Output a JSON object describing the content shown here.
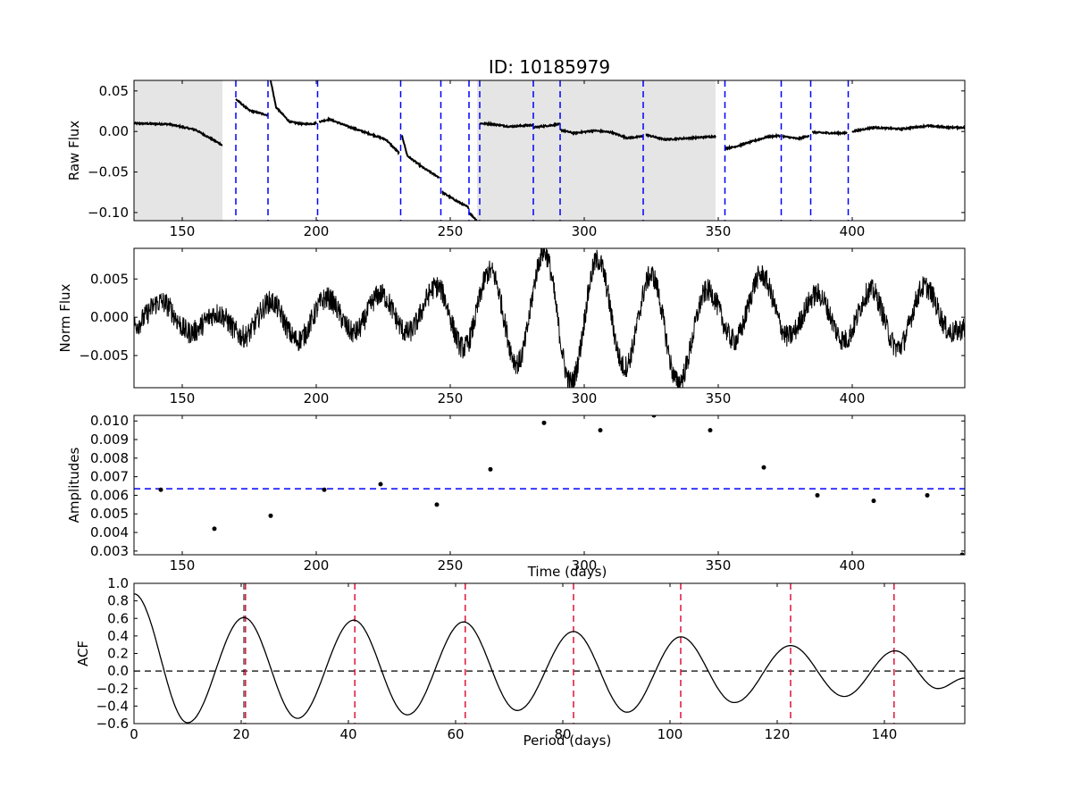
{
  "chart_data": [
    {
      "type": "line",
      "title": "ID: 10185979",
      "xlabel": "",
      "ylabel": "Raw Flux",
      "xlim": [
        132,
        442
      ],
      "ylim": [
        -0.11,
        0.063
      ],
      "xticks": [
        150,
        200,
        250,
        300,
        350,
        400
      ],
      "xtick_labels": [
        "150",
        "200",
        "250",
        "300",
        "350",
        "400"
      ],
      "yticks": [
        0.05,
        0.0,
        -0.05,
        -0.1
      ],
      "ytick_labels": [
        "0.05",
        "0.00",
        "−0.05",
        "−0.10"
      ],
      "shaded_spans": [
        [
          132,
          165
        ],
        [
          260,
          349
        ]
      ],
      "quarter_boundaries": [
        170,
        182,
        200.5,
        231.5,
        246.5,
        257,
        261,
        281,
        291,
        322,
        352.5,
        373.5,
        384.5,
        398.5
      ],
      "boundary_color": "#0000ff",
      "shade_color": "#e5e5e5",
      "segments": [
        {
          "x": [
            132,
            145,
            155,
            165
          ],
          "y": [
            0.01,
            0.009,
            0.002,
            -0.017
          ]
        },
        {
          "x": [
            170,
            175,
            182
          ],
          "y": [
            0.04,
            0.026,
            0.02
          ]
        },
        {
          "x": [
            183,
            185,
            190,
            195,
            200
          ],
          "y": [
            0.063,
            0.03,
            0.012,
            0.009,
            0.01
          ]
        },
        {
          "x": [
            201,
            205,
            212,
            220,
            226,
            231
          ],
          "y": [
            0.012,
            0.015,
            0.006,
            -0.003,
            -0.01,
            -0.027
          ]
        },
        {
          "x": [
            232,
            234,
            240,
            246
          ],
          "y": [
            -0.005,
            -0.03,
            -0.045,
            -0.057
          ]
        },
        {
          "x": [
            247,
            252,
            257
          ],
          "y": [
            -0.075,
            -0.085,
            -0.094
          ]
        },
        {
          "x": [
            257,
            260
          ],
          "y": [
            -0.1,
            -0.11
          ]
        },
        {
          "x": [
            261,
            266,
            272,
            281
          ],
          "y": [
            0.01,
            0.009,
            0.006,
            0.008
          ]
        },
        {
          "x": [
            281,
            286,
            291
          ],
          "y": [
            0.005,
            0.007,
            0.009
          ]
        },
        {
          "x": [
            291,
            296,
            304,
            310,
            316,
            322
          ],
          "y": [
            0.002,
            -0.002,
            0.001,
            -0.001,
            -0.008,
            -0.006
          ]
        },
        {
          "x": [
            323,
            330,
            340,
            349
          ],
          "y": [
            -0.004,
            -0.01,
            -0.008,
            -0.006
          ]
        },
        {
          "x": [
            352.5,
            356,
            362,
            368,
            373
          ],
          "y": [
            -0.021,
            -0.019,
            -0.013,
            -0.007,
            -0.005
          ]
        },
        {
          "x": [
            374,
            380,
            384
          ],
          "y": [
            -0.006,
            -0.009,
            -0.005
          ]
        },
        {
          "x": [
            385,
            392,
            398
          ],
          "y": [
            -0.001,
            -0.002,
            -0.002
          ]
        },
        {
          "x": [
            400,
            408,
            418,
            428,
            436,
            442
          ],
          "y": [
            0.0,
            0.005,
            0.003,
            0.007,
            0.005,
            0.005
          ]
        }
      ]
    },
    {
      "type": "line",
      "title": "",
      "xlabel": "",
      "ylabel": "Norm Flux",
      "xlim": [
        132,
        442
      ],
      "ylim": [
        -0.0092,
        0.009
      ],
      "xticks": [
        150,
        200,
        250,
        300,
        350,
        400
      ],
      "xtick_labels": [
        "150",
        "200",
        "250",
        "300",
        "350",
        "400"
      ],
      "yticks": [
        0.005,
        0.0,
        -0.005
      ],
      "ytick_labels": [
        "0.005",
        "0.000",
        "−0.005"
      ],
      "envelope_extrema": {
        "x": [
          132,
          142,
          153,
          163,
          173,
          183,
          193,
          204,
          214,
          224,
          234,
          245,
          255,
          265,
          275,
          285,
          295,
          305,
          315,
          325,
          335,
          346,
          356,
          366,
          376,
          387,
          397,
          407,
          417,
          427,
          437,
          442
        ],
        "y": [
          -0.001,
          0.002,
          -0.002,
          0.0005,
          -0.0025,
          0.002,
          -0.003,
          0.0025,
          -0.002,
          0.003,
          -0.002,
          0.004,
          -0.004,
          0.006,
          -0.006,
          0.0085,
          -0.0085,
          0.0075,
          -0.0065,
          0.0055,
          -0.0085,
          0.0035,
          -0.003,
          0.0055,
          -0.0025,
          0.003,
          -0.003,
          0.0035,
          -0.004,
          0.004,
          -0.002,
          -0.0015
        ]
      },
      "noise_amplitude": 0.0015
    },
    {
      "type": "scatter",
      "title": "",
      "xlabel": "Time (days)",
      "ylabel": "Amplitudes",
      "xlim": [
        132,
        442
      ],
      "ylim": [
        0.0028,
        0.0103
      ],
      "xticks": [
        150,
        200,
        250,
        300,
        350,
        400
      ],
      "xtick_labels": [
        "150",
        "200",
        "250",
        "300",
        "350",
        "400"
      ],
      "yticks": [
        0.003,
        0.004,
        0.005,
        0.006,
        0.007,
        0.008,
        0.009,
        0.01
      ],
      "ytick_labels": [
        "0.003",
        "0.004",
        "0.005",
        "0.006",
        "0.007",
        "0.008",
        "0.009",
        "0.010"
      ],
      "x": [
        142,
        162,
        183,
        203,
        224,
        245,
        265,
        285,
        306,
        326,
        347,
        367,
        387,
        408,
        428,
        441
      ],
      "y": [
        0.0063,
        0.0042,
        0.0049,
        0.0063,
        0.0066,
        0.0055,
        0.0074,
        0.0099,
        0.0095,
        0.0103,
        0.0095,
        0.0075,
        0.006,
        0.0057,
        0.006,
        0.0028
      ],
      "reference_line": {
        "y": 0.00635,
        "color": "#0000ff"
      }
    },
    {
      "type": "line",
      "title": "",
      "xlabel": "Period (days)",
      "ylabel": "ACF",
      "xlim": [
        0,
        155
      ],
      "ylim": [
        -0.6,
        1.0
      ],
      "xticks": [
        0,
        20,
        40,
        60,
        80,
        100,
        120,
        140
      ],
      "xtick_labels": [
        "0",
        "20",
        "40",
        "60",
        "80",
        "100",
        "120",
        "140"
      ],
      "yticks": [
        1.0,
        0.8,
        0.6,
        0.4,
        0.2,
        0.0,
        -0.2,
        -0.4,
        -0.6
      ],
      "ytick_labels": [
        "1.0",
        "0.8",
        "0.6",
        "0.4",
        "0.2",
        "0.0",
        "−0.2",
        "−0.4",
        "−0.6"
      ],
      "x": [
        0,
        10,
        20.5,
        30.5,
        41,
        51,
        61.5,
        71.5,
        82,
        92,
        102,
        112,
        122.5,
        132.5,
        142,
        150,
        155
      ],
      "y": [
        0.88,
        -0.59,
        0.61,
        -0.54,
        0.58,
        -0.5,
        0.56,
        -0.45,
        0.45,
        -0.47,
        0.39,
        -0.36,
        0.29,
        -0.29,
        0.23,
        -0.2,
        -0.08
      ],
      "peak_lines": [
        20.8,
        41.2,
        61.8,
        82.0,
        102.0,
        122.5,
        141.8
      ],
      "peak_color": "#dc143c",
      "period_marker": 20.5,
      "zero_line": 0.0
    }
  ]
}
